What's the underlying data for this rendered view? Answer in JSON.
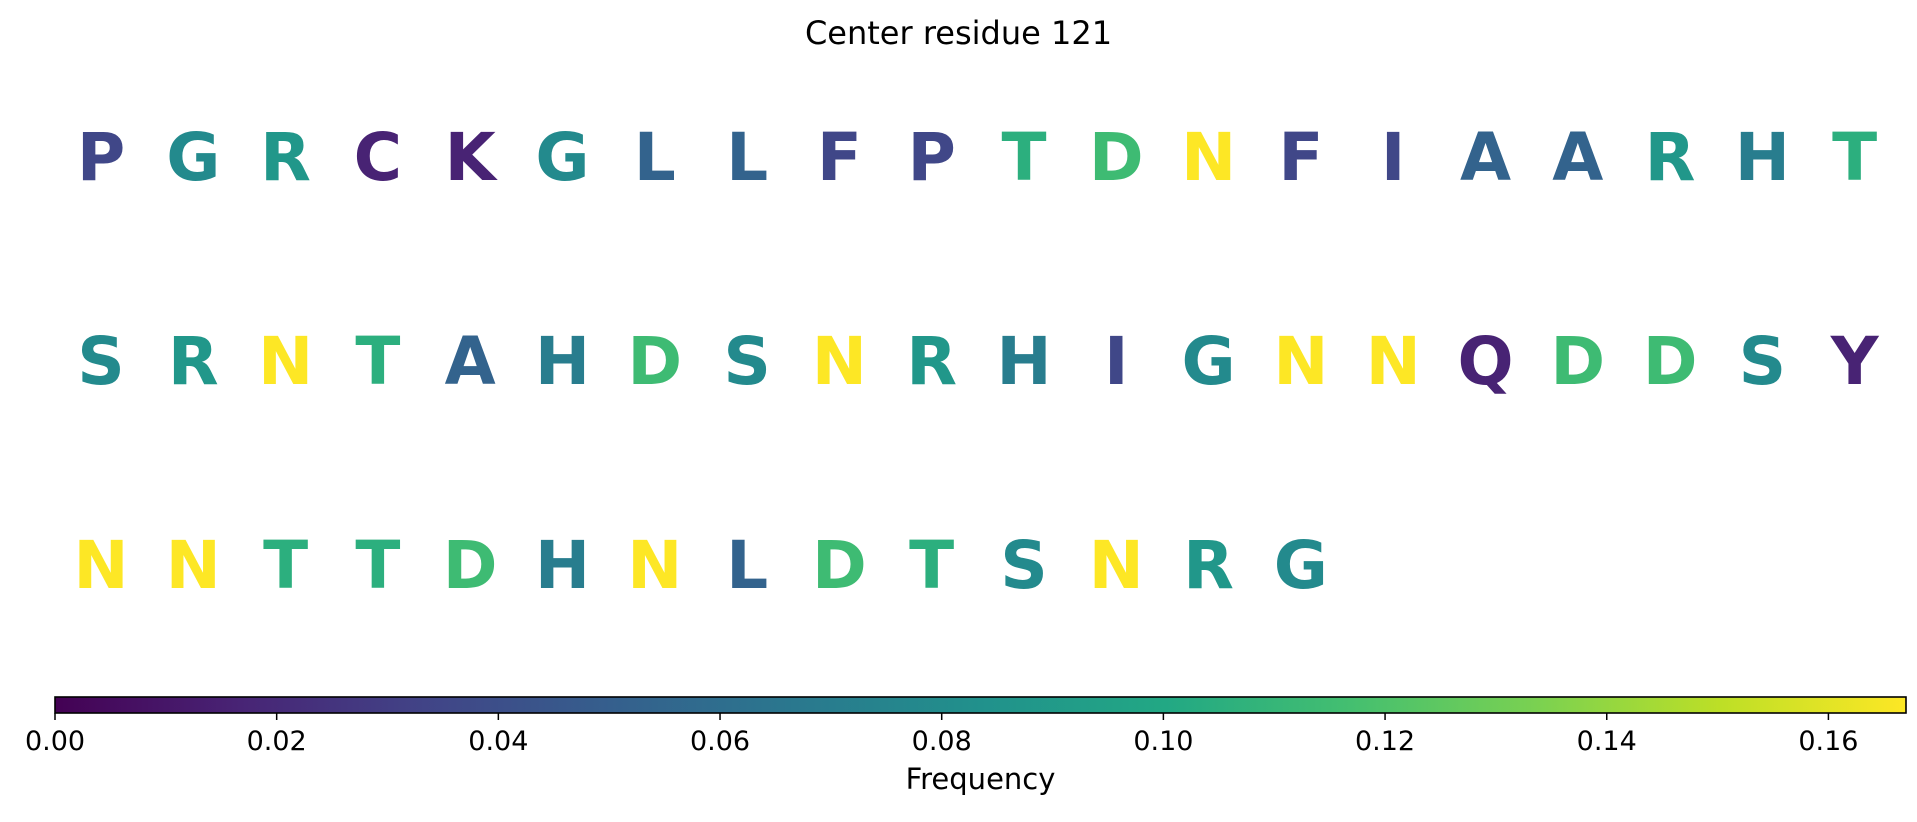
{
  "chart_data": {
    "type": "heatmap",
    "title": "Center residue 121",
    "residues": [
      {
        "aa": "P",
        "freq": 0.035
      },
      {
        "aa": "G",
        "freq": 0.079
      },
      {
        "aa": "R",
        "freq": 0.088
      },
      {
        "aa": "C",
        "freq": 0.016
      },
      {
        "aa": "K",
        "freq": 0.016
      },
      {
        "aa": "G",
        "freq": 0.079
      },
      {
        "aa": "L",
        "freq": 0.053
      },
      {
        "aa": "L",
        "freq": 0.053
      },
      {
        "aa": "F",
        "freq": 0.035
      },
      {
        "aa": "P",
        "freq": 0.035
      },
      {
        "aa": "T",
        "freq": 0.105
      },
      {
        "aa": "D",
        "freq": 0.114
      },
      {
        "aa": "N",
        "freq": 0.167
      },
      {
        "aa": "F",
        "freq": 0.035
      },
      {
        "aa": "I",
        "freq": 0.035
      },
      {
        "aa": "A",
        "freq": 0.053
      },
      {
        "aa": "A",
        "freq": 0.053
      },
      {
        "aa": "R",
        "freq": 0.088
      },
      {
        "aa": "H",
        "freq": 0.07
      },
      {
        "aa": "T",
        "freq": 0.105
      },
      {
        "aa": "S",
        "freq": 0.079
      },
      {
        "aa": "R",
        "freq": 0.088
      },
      {
        "aa": "N",
        "freq": 0.167
      },
      {
        "aa": "T",
        "freq": 0.105
      },
      {
        "aa": "A",
        "freq": 0.053
      },
      {
        "aa": "H",
        "freq": 0.07
      },
      {
        "aa": "D",
        "freq": 0.114
      },
      {
        "aa": "S",
        "freq": 0.079
      },
      {
        "aa": "N",
        "freq": 0.167
      },
      {
        "aa": "R",
        "freq": 0.088
      },
      {
        "aa": "H",
        "freq": 0.07
      },
      {
        "aa": "I",
        "freq": 0.035
      },
      {
        "aa": "G",
        "freq": 0.079
      },
      {
        "aa": "N",
        "freq": 0.167
      },
      {
        "aa": "N",
        "freq": 0.167
      },
      {
        "aa": "Q",
        "freq": 0.016
      },
      {
        "aa": "D",
        "freq": 0.114
      },
      {
        "aa": "D",
        "freq": 0.114
      },
      {
        "aa": "S",
        "freq": 0.079
      },
      {
        "aa": "Y",
        "freq": 0.016
      },
      {
        "aa": "N",
        "freq": 0.167
      },
      {
        "aa": "N",
        "freq": 0.167
      },
      {
        "aa": "T",
        "freq": 0.105
      },
      {
        "aa": "T",
        "freq": 0.105
      },
      {
        "aa": "D",
        "freq": 0.114
      },
      {
        "aa": "H",
        "freq": 0.07
      },
      {
        "aa": "N",
        "freq": 0.167
      },
      {
        "aa": "L",
        "freq": 0.053
      },
      {
        "aa": "D",
        "freq": 0.114
      },
      {
        "aa": "T",
        "freq": 0.105
      },
      {
        "aa": "S",
        "freq": 0.079
      },
      {
        "aa": "N",
        "freq": 0.167
      },
      {
        "aa": "R",
        "freq": 0.088
      },
      {
        "aa": "G",
        "freq": 0.079
      }
    ],
    "colorbar": {
      "label": "Frequency",
      "colormap": "viridis",
      "range": [
        0,
        0.167
      ],
      "ticks": [
        "0.00",
        "0.02",
        "0.04",
        "0.06",
        "0.08",
        "0.10",
        "0.12",
        "0.14",
        "0.16"
      ],
      "tick_values": [
        0,
        0.02,
        0.04,
        0.06,
        0.08,
        0.1,
        0.12,
        0.14,
        0.16
      ]
    }
  }
}
